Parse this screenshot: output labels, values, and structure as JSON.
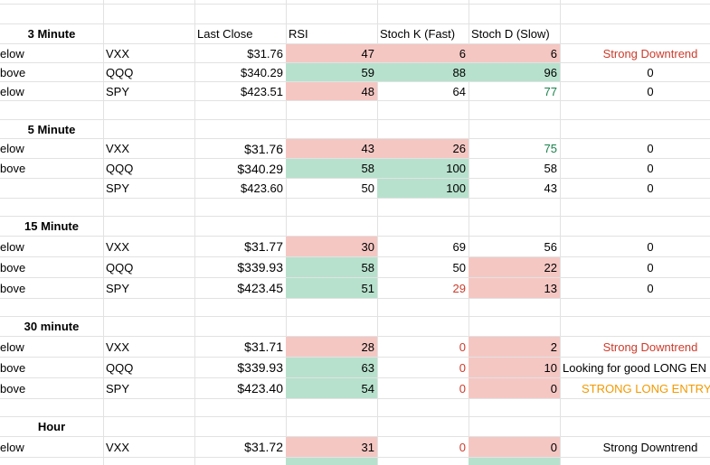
{
  "header": {
    "last_close": "Last Close",
    "rsi": "RSI",
    "stoch_k": "Stoch K (Fast)",
    "stoch_d": "Stoch D (Slow)"
  },
  "colors": {
    "red_fill": "#f4c7c3",
    "green_fill": "#b7e1cd",
    "red_text": "#cc3b2b",
    "green_text": "#17824a",
    "orange_text": "#f29900"
  },
  "sections": [
    {
      "title": "3 Minute",
      "rows": [
        {
          "status": "elow",
          "ticker": "VXX",
          "last_close": "$31.76",
          "rsi": "47",
          "stoch_k": "6",
          "stoch_d": "6",
          "signal": "Strong Downtrend"
        },
        {
          "status": "bove",
          "ticker": "QQQ",
          "last_close": "$340.29",
          "rsi": "59",
          "stoch_k": "88",
          "stoch_d": "96",
          "signal": "0"
        },
        {
          "status": "elow",
          "ticker": "SPY",
          "last_close": "$423.51",
          "rsi": "48",
          "stoch_k": "64",
          "stoch_d": "77",
          "signal": "0"
        }
      ]
    },
    {
      "title": "5 Minute",
      "rows": [
        {
          "status": "elow",
          "ticker": "VXX",
          "last_close": "$31.76",
          "rsi": "43",
          "stoch_k": "26",
          "stoch_d": "75",
          "signal": "0"
        },
        {
          "status": "bove",
          "ticker": "QQQ",
          "last_close": "$340.29",
          "rsi": "58",
          "stoch_k": "100",
          "stoch_d": "58",
          "signal": "0"
        },
        {
          "status": "",
          "ticker": "SPY",
          "last_close": "$423.60",
          "rsi": "50",
          "stoch_k": "100",
          "stoch_d": "43",
          "signal": "0"
        }
      ]
    },
    {
      "title": "15 Minute",
      "rows": [
        {
          "status": "elow",
          "ticker": "VXX",
          "last_close": "$31.77",
          "rsi": "30",
          "stoch_k": "69",
          "stoch_d": "56",
          "signal": "0"
        },
        {
          "status": "bove",
          "ticker": "QQQ",
          "last_close": "$339.93",
          "rsi": "58",
          "stoch_k": "50",
          "stoch_d": "22",
          "signal": "0"
        },
        {
          "status": "bove",
          "ticker": "SPY",
          "last_close": "$423.45",
          "rsi": "51",
          "stoch_k": "29",
          "stoch_d": "13",
          "signal": "0"
        }
      ]
    },
    {
      "title": "30 minute",
      "rows": [
        {
          "status": "elow",
          "ticker": "VXX",
          "last_close": "$31.71",
          "rsi": "28",
          "stoch_k": "0",
          "stoch_d": "2",
          "signal": "Strong Downtrend"
        },
        {
          "status": "bove",
          "ticker": "QQQ",
          "last_close": "$339.93",
          "rsi": "63",
          "stoch_k": "0",
          "stoch_d": "10",
          "signal": "Looking for good LONG EN"
        },
        {
          "status": "bove",
          "ticker": "SPY",
          "last_close": "$423.40",
          "rsi": "54",
          "stoch_k": "0",
          "stoch_d": "0",
          "signal": "STRONG LONG ENTRY"
        }
      ]
    },
    {
      "title": "Hour",
      "rows": [
        {
          "status": "elow",
          "ticker": "VXX",
          "last_close": "$31.72",
          "rsi": "31",
          "stoch_k": "0",
          "stoch_d": "0",
          "signal": "Strong Downtrend"
        }
      ]
    }
  ]
}
